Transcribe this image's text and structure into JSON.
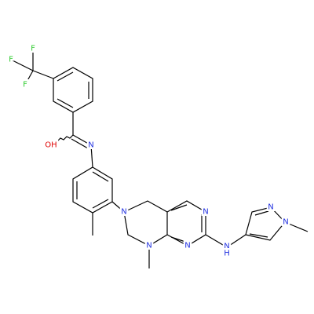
{
  "atoms": [
    "F",
    "F",
    "F",
    "OH",
    "N",
    "N",
    "N",
    "N",
    "N",
    "N",
    "H",
    "N",
    "N"
  ]
}
